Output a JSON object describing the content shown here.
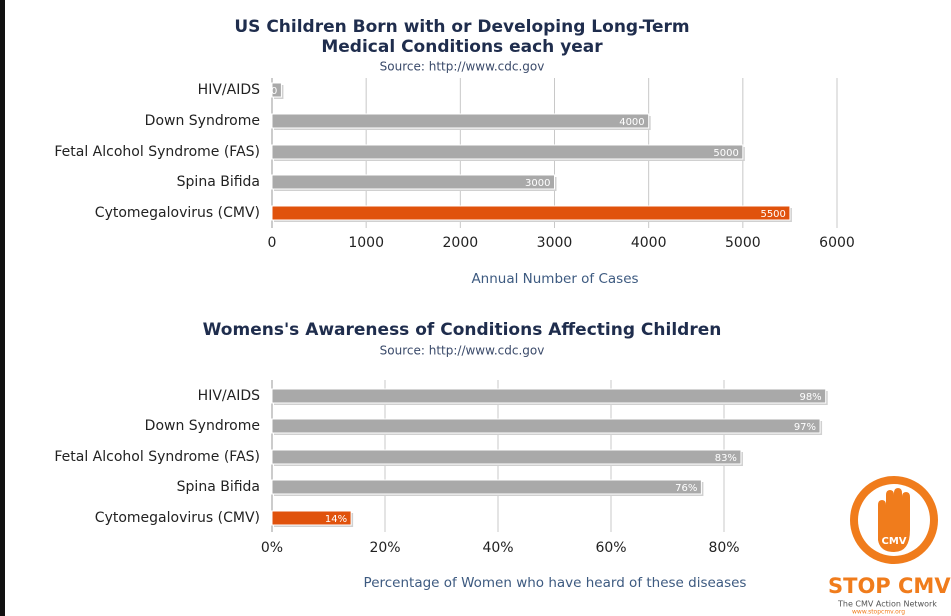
{
  "chart_data": [
    {
      "type": "hbar",
      "title": [
        "US Children Born with or Developing Long-Term",
        "Medical Conditions each year"
      ],
      "subtitle": "Source: http://www.cdc.gov",
      "categories": [
        "HIV/AIDS",
        "Down Syndrome",
        "Fetal Alcohol Syndrome (FAS)",
        "Spina Bifida",
        "Cytomegalovirus (CMV)"
      ],
      "values": [
        100,
        4000,
        5000,
        3000,
        5500
      ],
      "colors": [
        "#a9a9a9",
        "#a9a9a9",
        "#a9a9a9",
        "#a9a9a9",
        "#e0520c"
      ],
      "xlim": [
        0,
        6000
      ],
      "xticks": [
        0,
        1000,
        2000,
        3000,
        4000,
        5000,
        6000
      ],
      "xlabel": "Annual Number of Cases",
      "grid": true
    },
    {
      "type": "hbar",
      "title": [
        "Womens's Awareness of Conditions Affecting Children"
      ],
      "subtitle": "Source: http://www.cdc.gov",
      "categories": [
        "HIV/AIDS",
        "Down Syndrome",
        "Fetal Alcohol Syndrome (FAS)",
        "Spina Bifida",
        "Cytomegalovirus (CMV)"
      ],
      "values": [
        98,
        97,
        83,
        76,
        14
      ],
      "value_labels": [
        "98%",
        "97%",
        "83%",
        "76%",
        "14%"
      ],
      "colors": [
        "#a9a9a9",
        "#a9a9a9",
        "#a9a9a9",
        "#a9a9a9",
        "#e0520c"
      ],
      "xlim": [
        0,
        100
      ],
      "xticks": [
        {
          "value": 0,
          "label": "0%"
        },
        {
          "value": 20,
          "label": "20%"
        },
        {
          "value": 40,
          "label": "40%"
        },
        {
          "value": 60,
          "label": "60%"
        },
        {
          "value": 80,
          "label": "80%"
        }
      ],
      "xlabel": "Percentage of Women who have heard of these diseases",
      "grid": true
    }
  ],
  "logo": {
    "badge": "CMV",
    "name": "STOP CMV",
    "tagline": "The CMV Action Network",
    "url": "www.stopcmv.org"
  }
}
